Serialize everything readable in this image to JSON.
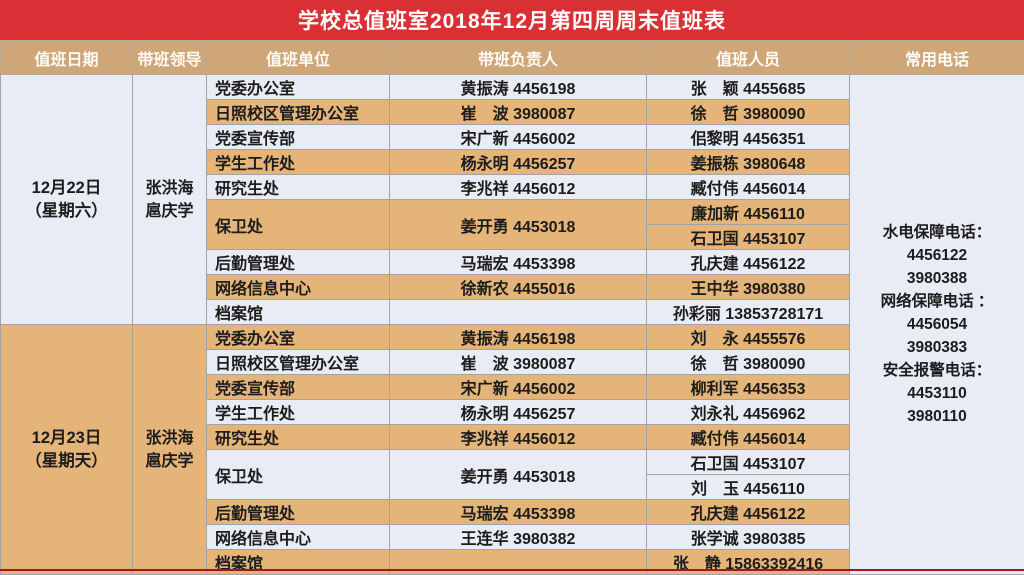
{
  "page": {
    "title": "学校总值班室2018年12月第四周周末值班表"
  },
  "colors": {
    "title_bg": "#D93035",
    "header_bg": "#CFA678",
    "row_orange": "#E4B478",
    "row_light": "#E9ECF4",
    "border": "#A3A3A3",
    "bottom_line": "#9E1A1A",
    "text": "#1C1C1C"
  },
  "columns": [
    "值班日期",
    "带班领导",
    "值班单位",
    "带班负责人",
    "值班人员",
    "常用电话"
  ],
  "phone": {
    "lines": [
      "水电保障电话：",
      "4456122",
      "3980388",
      "网络保障电话 ：",
      "4456054",
      "3980383",
      "安全报警电话：",
      "4453110",
      "3980110"
    ]
  },
  "groups": [
    {
      "date_line1": "12月22日",
      "date_line2": "（星期六）",
      "leaders": [
        "张洪海",
        "扈庆学"
      ],
      "shade": "light",
      "units": [
        {
          "name": "党委办公室",
          "lead": "黄振涛 4456198",
          "staff": [
            "张　颖 4455685"
          ],
          "shade": "light"
        },
        {
          "name": "日照校区管理办公室",
          "lead": "崔　波 3980087",
          "staff": [
            "徐　哲 3980090"
          ],
          "shade": "orange"
        },
        {
          "name": "党委宣传部",
          "lead": "宋广新 4456002",
          "staff": [
            "佀黎明 4456351"
          ],
          "shade": "light"
        },
        {
          "name": "学生工作处",
          "lead": "杨永明 4456257",
          "staff": [
            "姜振栋 3980648"
          ],
          "shade": "orange"
        },
        {
          "name": "研究生处",
          "lead": "李兆祥 4456012",
          "staff": [
            "臧付伟 4456014"
          ],
          "shade": "light"
        },
        {
          "name": "保卫处",
          "lead": "姜开勇 4453018",
          "staff": [
            "廉加新 4456110",
            "石卫国 4453107"
          ],
          "shade": "orange"
        },
        {
          "name": "后勤管理处",
          "lead": "马瑞宏 4453398",
          "staff": [
            "孔庆建 4456122"
          ],
          "shade": "light"
        },
        {
          "name": "网络信息中心",
          "lead": "徐新农 4455016",
          "staff": [
            "王中华 3980380"
          ],
          "shade": "orange"
        },
        {
          "name": "档案馆",
          "lead": "",
          "staff": [
            "孙彩丽 13853728171"
          ],
          "shade": "light"
        }
      ]
    },
    {
      "date_line1": "12月23日",
      "date_line2": "（星期天）",
      "leaders": [
        "张洪海",
        "扈庆学"
      ],
      "shade": "orange",
      "units": [
        {
          "name": "党委办公室",
          "lead": "黄振涛 4456198",
          "staff": [
            "刘　永 4455576"
          ],
          "shade": "orange"
        },
        {
          "name": "日照校区管理办公室",
          "lead": "崔　波 3980087",
          "staff": [
            "徐　哲 3980090"
          ],
          "shade": "light"
        },
        {
          "name": "党委宣传部",
          "lead": "宋广新 4456002",
          "staff": [
            "柳利军 4456353"
          ],
          "shade": "orange"
        },
        {
          "name": "学生工作处",
          "lead": "杨永明 4456257",
          "staff": [
            "刘永礼 4456962"
          ],
          "shade": "light"
        },
        {
          "name": "研究生处",
          "lead": "李兆祥 4456012",
          "staff": [
            "臧付伟 4456014"
          ],
          "shade": "orange"
        },
        {
          "name": "保卫处",
          "lead": "姜开勇 4453018",
          "staff": [
            "石卫国 4453107",
            "刘　玉 4456110"
          ],
          "shade": "light"
        },
        {
          "name": "后勤管理处",
          "lead": "马瑞宏 4453398",
          "staff": [
            "孔庆建 4456122"
          ],
          "shade": "orange"
        },
        {
          "name": "网络信息中心",
          "lead": "王连华 3980382",
          "staff": [
            "张学诚 3980385"
          ],
          "shade": "light"
        },
        {
          "name": "档案馆",
          "lead": "",
          "staff": [
            "张　静 15863392416"
          ],
          "shade": "orange"
        }
      ]
    }
  ]
}
